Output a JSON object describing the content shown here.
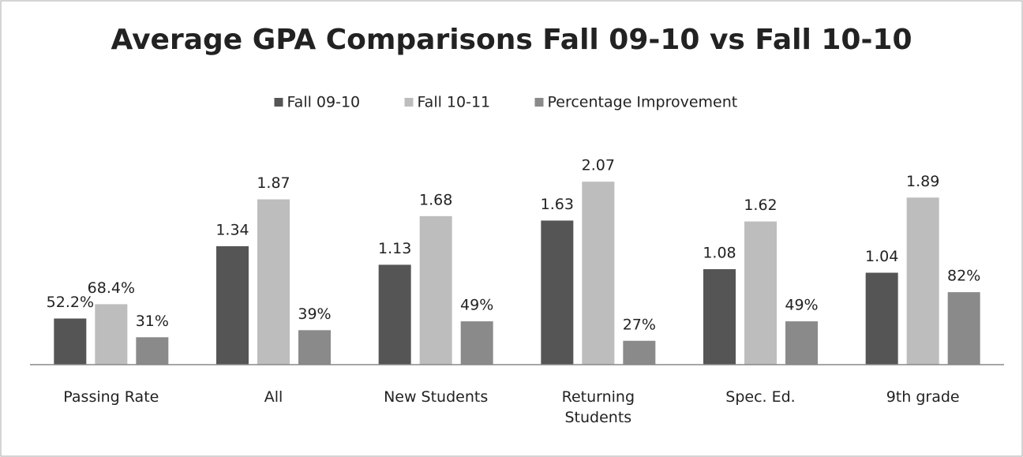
{
  "chart_data": {
    "type": "bar",
    "title": "Average GPA Comparisons Fall 09-10 vs Fall 10-10",
    "categories": [
      "Passing Rate",
      "All",
      "New Students",
      "Returning Students",
      "Spec. Ed.",
      "9th grade"
    ],
    "series": [
      {
        "name": "Fall 09-10",
        "color": "#555555",
        "values": [
          0.522,
          1.34,
          1.13,
          1.63,
          1.08,
          1.04
        ],
        "value_labels": [
          "52.2%",
          "1.34",
          "1.13",
          "1.63",
          "1.08",
          "1.04"
        ]
      },
      {
        "name": "Fall 10-11",
        "color": "#bdbdbd",
        "values": [
          0.684,
          1.87,
          1.68,
          2.07,
          1.62,
          1.89
        ],
        "value_labels": [
          "68.4%",
          "1.87",
          "1.68",
          "2.07",
          "1.62",
          "1.89"
        ]
      },
      {
        "name": "Percentage Improvement",
        "color": "#8a8a8a",
        "values": [
          0.31,
          0.39,
          0.49,
          0.27,
          0.49,
          0.82
        ],
        "value_labels": [
          "31%",
          "39%",
          "49%",
          "27%",
          "49%",
          "82%"
        ]
      }
    ],
    "ylim": [
      0,
      2.5
    ],
    "legend": "top"
  }
}
